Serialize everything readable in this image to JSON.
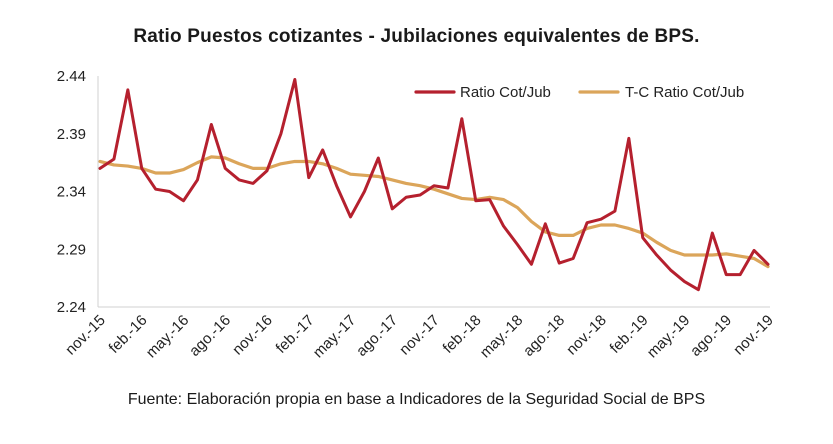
{
  "chart_data": {
    "type": "line",
    "title": "Ratio Puestos cotizantes - Jubilaciones  equivalentes de BPS.",
    "source": "Fuente: Elaboración propia en base a Indicadores de la Seguridad Social de BPS",
    "xlabel": "",
    "ylabel": "",
    "ylim": [
      2.24,
      2.44
    ],
    "yticks": [
      2.24,
      2.29,
      2.34,
      2.39,
      2.44
    ],
    "ytick_labels": [
      "2.24",
      "2.29",
      "2.34",
      "2.39",
      "2.44"
    ],
    "x": [
      "nov.-15",
      "dic.-15",
      "ene.-16",
      "feb.-16",
      "mar.-16",
      "abr.-16",
      "may.-16",
      "jun.-16",
      "jul.-16",
      "ago.-16",
      "sep.-16",
      "oct.-16",
      "nov.-16",
      "dic.-16",
      "ene.-17",
      "feb.-17",
      "mar.-17",
      "abr.-17",
      "may.-17",
      "jun.-17",
      "jul.-17",
      "ago.-17",
      "sep.-17",
      "oct.-17",
      "nov.-17",
      "dic.-17",
      "ene.-18",
      "feb.-18",
      "mar.-18",
      "abr.-18",
      "may.-18",
      "jun.-18",
      "jul.-18",
      "ago.-18",
      "sep.-18",
      "oct.-18",
      "nov.-18",
      "dic.-18",
      "ene.-19",
      "feb.-19",
      "mar.-19",
      "abr.-19",
      "may.-19",
      "jun.-19",
      "jul.-19",
      "ago.-19",
      "sep.-19",
      "oct.-19",
      "nov.-19"
    ],
    "x_tick_labels": [
      "nov.-15",
      "feb.-16",
      "may.-16",
      "ago.-16",
      "nov.-16",
      "feb.-17",
      "may.-17",
      "ago.-17",
      "nov.-17",
      "feb.-18",
      "may.-18",
      "ago.-18",
      "nov.-18",
      "feb.-19",
      "may.-19",
      "ago.-19",
      "nov.-19"
    ],
    "series": [
      {
        "name": "Ratio Cot/Jub",
        "color": "#b5202e",
        "values": [
          2.36,
          2.368,
          2.428,
          2.36,
          2.342,
          2.34,
          2.332,
          2.35,
          2.398,
          2.36,
          2.35,
          2.347,
          2.358,
          2.39,
          2.437,
          2.352,
          2.376,
          2.345,
          2.318,
          2.34,
          2.369,
          2.325,
          2.335,
          2.337,
          2.345,
          2.343,
          2.403,
          2.332,
          2.333,
          2.31,
          2.294,
          2.277,
          2.312,
          2.278,
          2.282,
          2.313,
          2.316,
          2.323,
          2.386,
          2.3,
          2.285,
          2.272,
          2.262,
          2.255,
          2.304,
          2.268,
          2.268,
          2.289,
          2.277
        ]
      },
      {
        "name": "T-C Ratio Cot/Jub",
        "color": "#dba55a",
        "values": [
          2.366,
          2.363,
          2.362,
          2.36,
          2.356,
          2.356,
          2.359,
          2.365,
          2.37,
          2.369,
          2.364,
          2.36,
          2.36,
          2.364,
          2.366,
          2.366,
          2.364,
          2.36,
          2.355,
          2.354,
          2.353,
          2.35,
          2.347,
          2.345,
          2.342,
          2.338,
          2.334,
          2.333,
          2.335,
          2.333,
          2.326,
          2.314,
          2.305,
          2.302,
          2.302,
          2.308,
          2.311,
          2.311,
          2.308,
          2.304,
          2.296,
          2.289,
          2.285,
          2.285,
          2.285,
          2.286,
          2.284,
          2.282,
          2.275
        ]
      }
    ],
    "grid": false,
    "legend_position": "top-right"
  }
}
